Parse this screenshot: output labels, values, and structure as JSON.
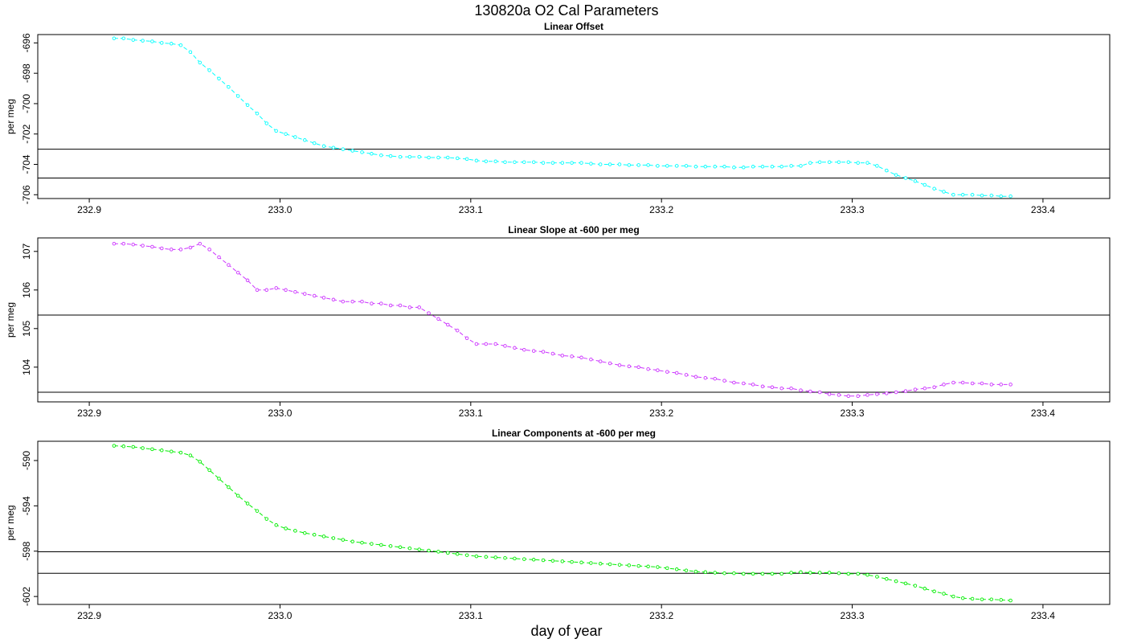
{
  "figure": {
    "title": "130820a   O2 Cal Parameters",
    "xlabel": "day of year"
  },
  "chart_data": [
    {
      "type": "line",
      "title": "Linear Offset",
      "ylabel": "per meg",
      "color": "#00ffff",
      "xlim": [
        232.873,
        233.435
      ],
      "ylim": [
        -706.25,
        -695.45
      ],
      "x_ticks": [
        232.9,
        233.0,
        233.1,
        233.2,
        233.3,
        233.4
      ],
      "x_tick_labels": [
        "232.9",
        "233.0",
        "233.1",
        "233.2",
        "233.3",
        "233.4"
      ],
      "y_ticks": [
        -696,
        -698,
        -700,
        -702,
        -704,
        -706
      ],
      "y_tick_labels": [
        "-696",
        "-698",
        "-700",
        "-702",
        "-704",
        "-706"
      ],
      "hlines": [
        -703.0,
        -704.9
      ],
      "x_start": 232.913,
      "x_step": 0.005,
      "values": [
        -695.7,
        -695.7,
        -695.8,
        -695.85,
        -695.9,
        -696.0,
        -696.05,
        -696.15,
        -696.6,
        -697.3,
        -697.8,
        -698.35,
        -698.9,
        -699.5,
        -700.1,
        -700.65,
        -701.3,
        -701.8,
        -702.0,
        -702.2,
        -702.4,
        -702.6,
        -702.8,
        -702.9,
        -703.0,
        -703.1,
        -703.2,
        -703.3,
        -703.4,
        -703.45,
        -703.5,
        -703.5,
        -703.5,
        -703.55,
        -703.55,
        -703.55,
        -703.6,
        -703.65,
        -703.75,
        -703.8,
        -703.8,
        -703.85,
        -703.85,
        -703.85,
        -703.85,
        -703.9,
        -703.9,
        -703.9,
        -703.9,
        -703.9,
        -703.95,
        -704.0,
        -704.0,
        -704.0,
        -704.05,
        -704.05,
        -704.05,
        -704.1,
        -704.1,
        -704.1,
        -704.1,
        -704.15,
        -704.15,
        -704.15,
        -704.15,
        -704.2,
        -704.2,
        -704.15,
        -704.15,
        -704.15,
        -704.15,
        -704.1,
        -704.1,
        -703.9,
        -703.85,
        -703.85,
        -703.85,
        -703.85,
        -703.9,
        -703.9,
        -704.1,
        -704.4,
        -704.7,
        -704.9,
        -705.1,
        -705.35,
        -705.6,
        -705.8,
        -706.0,
        -706.0,
        -706.0,
        -706.05,
        -706.05,
        -706.1,
        -706.1
      ]
    },
    {
      "type": "line",
      "title": "Linear Slope at -600 per meg",
      "ylabel": "per meg",
      "color": "#cc33ff",
      "xlim": [
        232.873,
        233.435
      ],
      "ylim": [
        103.1,
        107.35
      ],
      "x_ticks": [
        232.9,
        233.0,
        233.1,
        233.2,
        233.3,
        233.4
      ],
      "x_tick_labels": [
        "232.9",
        "233.0",
        "233.1",
        "233.2",
        "233.3",
        "233.4"
      ],
      "y_ticks": [
        104,
        105,
        106,
        107
      ],
      "y_tick_labels": [
        "104",
        "105",
        "106",
        "107"
      ],
      "hlines": [
        105.35,
        103.35
      ],
      "x_start": 232.913,
      "x_step": 0.005,
      "values": [
        107.2,
        107.2,
        107.18,
        107.15,
        107.12,
        107.08,
        107.05,
        107.05,
        107.1,
        107.2,
        107.05,
        106.85,
        106.65,
        106.45,
        106.25,
        106.0,
        106.0,
        106.05,
        106.0,
        105.95,
        105.9,
        105.85,
        105.8,
        105.75,
        105.7,
        105.7,
        105.7,
        105.65,
        105.65,
        105.6,
        105.6,
        105.55,
        105.55,
        105.4,
        105.25,
        105.1,
        104.95,
        104.75,
        104.6,
        104.6,
        104.6,
        104.55,
        104.5,
        104.45,
        104.42,
        104.4,
        104.35,
        104.3,
        104.28,
        104.25,
        104.2,
        104.15,
        104.1,
        104.05,
        104.02,
        104.0,
        103.95,
        103.92,
        103.88,
        103.85,
        103.8,
        103.75,
        103.72,
        103.7,
        103.65,
        103.6,
        103.58,
        103.55,
        103.5,
        103.48,
        103.45,
        103.45,
        103.4,
        103.37,
        103.35,
        103.3,
        103.28,
        103.25,
        103.25,
        103.28,
        103.3,
        103.32,
        103.35,
        103.38,
        103.42,
        103.45,
        103.48,
        103.55,
        103.6,
        103.6,
        103.58,
        103.58,
        103.55,
        103.55,
        103.55
      ]
    },
    {
      "type": "line",
      "title": "Linear Components at -600 per meg",
      "ylabel": "per meg",
      "color": "#00ee00",
      "xlim": [
        232.873,
        233.435
      ],
      "ylim": [
        -602.7,
        -588.3
      ],
      "x_ticks": [
        232.9,
        233.0,
        233.1,
        233.2,
        233.3,
        233.4
      ],
      "x_tick_labels": [
        "232.9",
        "233.0",
        "233.1",
        "233.2",
        "233.3",
        "233.4"
      ],
      "y_ticks": [
        -590,
        -594,
        -598,
        -602
      ],
      "y_tick_labels": [
        "-590",
        "-594",
        "-598",
        "-602"
      ],
      "hlines": [
        -598.05,
        -599.95
      ],
      "x_start": 232.913,
      "x_step": 0.005,
      "values": [
        -588.7,
        -588.75,
        -588.8,
        -588.9,
        -589.0,
        -589.1,
        -589.2,
        -589.3,
        -589.55,
        -590.1,
        -590.85,
        -591.6,
        -592.35,
        -593.1,
        -593.8,
        -594.45,
        -595.15,
        -595.7,
        -596.0,
        -596.2,
        -596.4,
        -596.55,
        -596.7,
        -596.85,
        -597.0,
        -597.15,
        -597.25,
        -597.35,
        -597.45,
        -597.55,
        -597.65,
        -597.75,
        -597.85,
        -597.95,
        -598.05,
        -598.15,
        -598.25,
        -598.35,
        -598.45,
        -598.5,
        -598.55,
        -598.6,
        -598.65,
        -598.7,
        -598.75,
        -598.8,
        -598.85,
        -598.9,
        -598.95,
        -599.0,
        -599.05,
        -599.1,
        -599.15,
        -599.2,
        -599.25,
        -599.3,
        -599.35,
        -599.4,
        -599.5,
        -599.6,
        -599.7,
        -599.8,
        -599.85,
        -599.9,
        -599.95,
        -599.95,
        -600.0,
        -600.0,
        -600.0,
        -600.0,
        -600.0,
        -599.9,
        -599.85,
        -599.9,
        -599.9,
        -599.9,
        -599.95,
        -600.0,
        -600.0,
        -600.1,
        -600.25,
        -600.45,
        -600.65,
        -600.85,
        -601.05,
        -601.3,
        -601.55,
        -601.75,
        -602.0,
        -602.15,
        -602.2,
        -602.25,
        -602.25,
        -602.3,
        -602.35
      ]
    }
  ]
}
